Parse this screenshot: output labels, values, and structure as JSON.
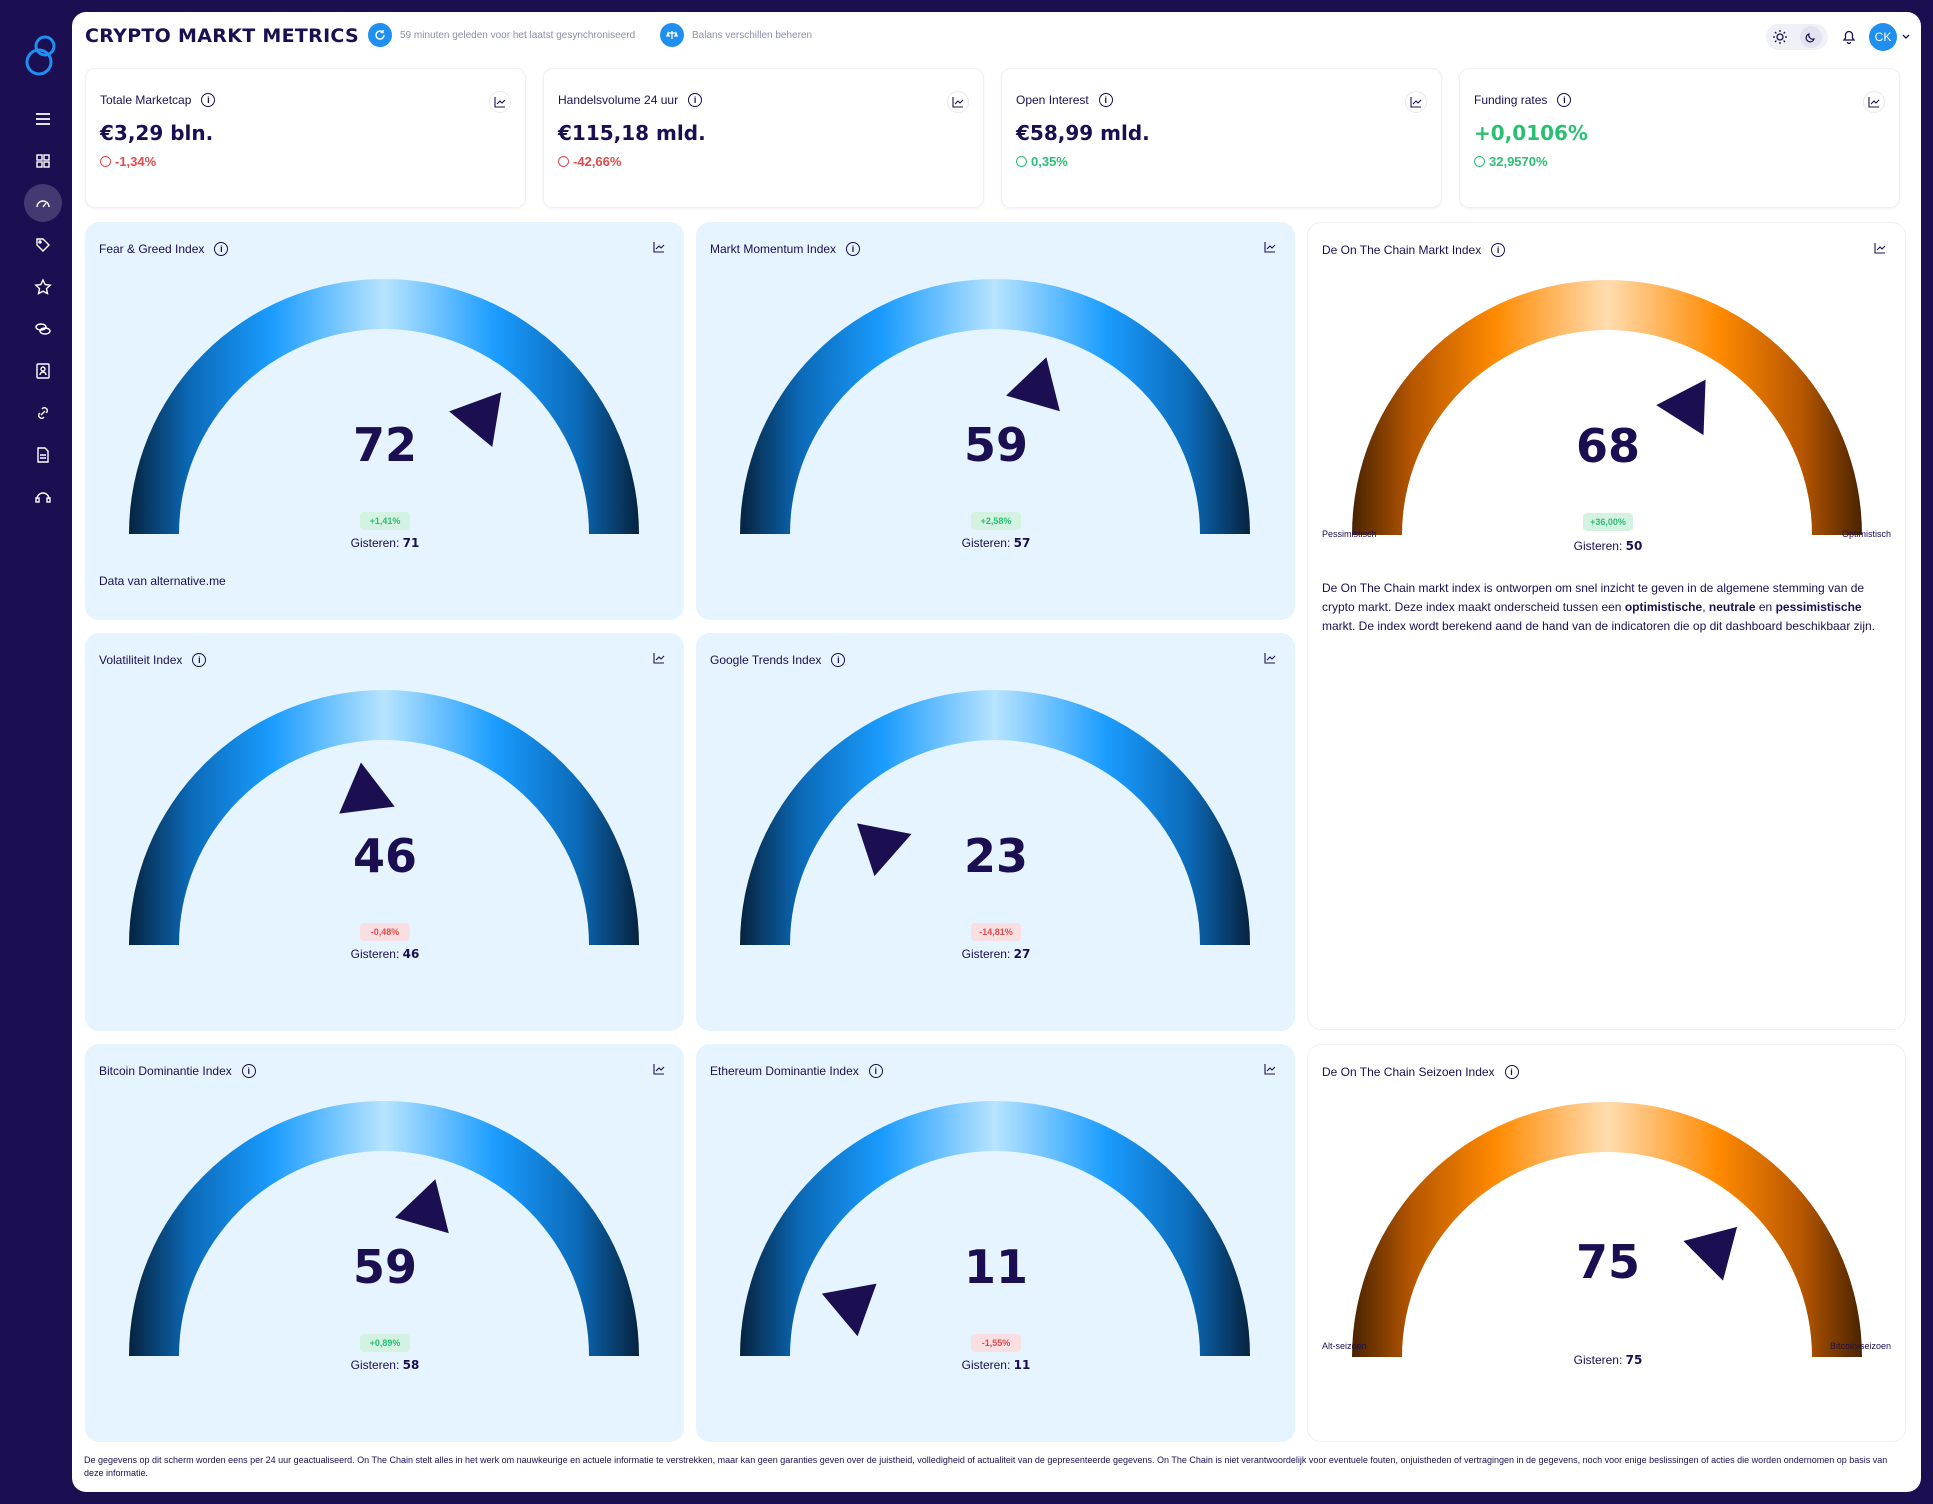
{
  "header": {
    "title": "CRYPTO MARKT METRICS",
    "sync_text": "59 minuten geleden voor het laatst gesynchroniseerd",
    "balance_text": "Balans verschillen beheren",
    "avatar_initials": "CK"
  },
  "stats": [
    {
      "label": "Totale Marketcap",
      "value": "€3,29 bln.",
      "change": "-1,34%",
      "trend": "down"
    },
    {
      "label": "Handelsvolume 24 uur",
      "value": "€115,18 mld.",
      "change": "-42,66%",
      "trend": "down"
    },
    {
      "label": "Open Interest",
      "value": "€58,99 mld.",
      "change": "0,35%",
      "trend": "up"
    },
    {
      "label": "Funding rates",
      "value": "+0,0106%",
      "change": "32,9570%",
      "trend": "up"
    }
  ],
  "gauges": {
    "fear_greed": {
      "title": "Fear & Greed Index",
      "value": "72",
      "level": 72,
      "change": "+1,41%",
      "yesterday_label": "Gisteren:",
      "yesterday": "71",
      "source": "Data van alternative.me"
    },
    "momentum": {
      "title": "Markt Momentum Index",
      "value": "59",
      "level": 59,
      "change": "+2,58%",
      "yesterday_label": "Gisteren:",
      "yesterday": "57"
    },
    "onchain": {
      "title": "De On The Chain Markt Index",
      "value": "68",
      "level": 68,
      "change": "+36,00%",
      "yesterday_label": "Gisteren:",
      "yesterday": "50",
      "left_label": "Pessimistisch",
      "right_label": "Optimistisch",
      "description_1": "De On The Chain markt index is ontworpen om snel inzicht te geven in de algemene stemming van de crypto markt. Deze index maakt onderscheid tussen een ",
      "description_b1": "optimistische",
      "description_2": ", ",
      "description_b2": "neutrale",
      "description_3": " en ",
      "description_b3": "pessimistische",
      "description_4": " markt. De index wordt berekend aand de hand van de indicatoren die op dit dashboard beschikbaar zijn."
    },
    "volatility": {
      "title": "Volatiliteit Index",
      "value": "46",
      "level": 46,
      "change": "-0,48%",
      "yesterday_label": "Gisteren:",
      "yesterday": "46"
    },
    "google": {
      "title": "Google Trends Index",
      "value": "23",
      "level": 23,
      "change": "-14,81%",
      "yesterday_label": "Gisteren:",
      "yesterday": "27"
    },
    "btc_dom": {
      "title": "Bitcoin Dominantie Index",
      "value": "59",
      "level": 59,
      "change": "+0,89%",
      "yesterday_label": "Gisteren:",
      "yesterday": "58"
    },
    "eth_dom": {
      "title": "Ethereum Dominantie Index",
      "value": "11",
      "level": 11,
      "change": "-1,55%",
      "yesterday_label": "Gisteren:",
      "yesterday": "11"
    },
    "season": {
      "title": "De On The Chain Seizoen Index",
      "value": "75",
      "level": 75,
      "yesterday_label": "Gisteren:",
      "yesterday": "75",
      "left_label": "Alt-seizoen",
      "right_label": "Bitcoin-seizoen"
    }
  },
  "footer": "De gegevens op dit scherm worden eens per 24 uur geactualiseerd. On The Chain stelt alles in het werk om nauwkeurige en actuele informatie te verstrekken, maar kan geen garanties geven over de juistheid, volledigheid of actualiteit van de gepresenteerde gegevens. On The Chain is niet verantwoordelijk voor eventuele fouten, onjuistheden of vertragingen in de gegevens, noch voor enige beslissingen of acties die worden ondernomen op basis van deze informatie.",
  "colors": {
    "primary": "#1b0f52",
    "accent": "#1f8ff0",
    "negative": "#e04b4b",
    "positive": "#2bbf73",
    "card_blue": "#e5f4fe"
  }
}
